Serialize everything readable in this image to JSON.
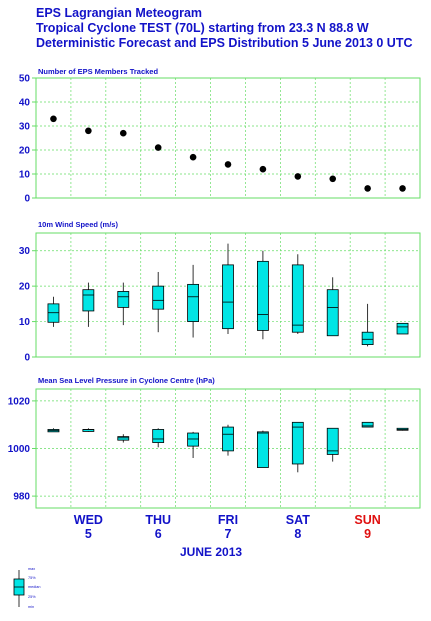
{
  "header": {
    "line1": "EPS Lagrangian Meteogram",
    "line2": "Tropical Cyclone TEST (70L) starting from 23.3 N  88.8 W",
    "line3": "Deterministic Forecast and EPS Distribution 5 June 2013 0 UTC"
  },
  "colors": {
    "title": "#1212c8",
    "grid": "#66dd66",
    "box_fill": "#00e5e5",
    "marker": "#000000",
    "weekend_day": "#e01010"
  },
  "days": [
    {
      "name": "WED",
      "num": "5",
      "weekend": false
    },
    {
      "name": "THU",
      "num": "6",
      "weekend": false
    },
    {
      "name": "FRI",
      "num": "7",
      "weekend": false
    },
    {
      "name": "SAT",
      "num": "8",
      "weekend": false
    },
    {
      "name": "SUN",
      "num": "9",
      "weekend": true
    }
  ],
  "month_label": "JUNE    2013",
  "legend": {
    "labels": [
      "max",
      "75%",
      "median",
      "25%",
      "min"
    ]
  },
  "chart_data": [
    {
      "type": "scatter",
      "title": "Number of EPS Members Tracked",
      "ylim": [
        0,
        50
      ],
      "yticks": [
        0,
        10,
        20,
        30,
        40,
        50
      ],
      "grid": true,
      "x": [
        0,
        1,
        2,
        3,
        4,
        5,
        6,
        7,
        8,
        9,
        10
      ],
      "values": [
        33,
        28,
        27,
        21,
        17,
        14,
        12,
        9,
        8,
        4,
        4
      ]
    },
    {
      "type": "box",
      "title": "10m Wind Speed (m/s)",
      "ylim": [
        0,
        35
      ],
      "yticks": [
        0,
        10,
        20,
        30
      ],
      "grid": true,
      "boxes": [
        {
          "min": 8.5,
          "q1": 9.8,
          "median": 12.5,
          "q3": 15,
          "max": 17
        },
        {
          "min": 8.5,
          "q1": 13,
          "median": 17.5,
          "q3": 19,
          "max": 21
        },
        {
          "min": 9,
          "q1": 14,
          "median": 17,
          "q3": 18.5,
          "max": 21
        },
        {
          "min": 7,
          "q1": 13.5,
          "median": 16,
          "q3": 20,
          "max": 24
        },
        {
          "min": 5.5,
          "q1": 10,
          "median": 17,
          "q3": 20.5,
          "max": 26
        },
        {
          "min": 6.5,
          "q1": 8,
          "median": 15.5,
          "q3": 26,
          "max": 32
        },
        {
          "min": 5,
          "q1": 7.5,
          "median": 12,
          "q3": 27,
          "max": 30
        },
        {
          "min": 6.5,
          "q1": 7,
          "median": 9,
          "q3": 26,
          "max": 29
        },
        {
          "min": 6,
          "q1": 6,
          "median": 14,
          "q3": 19,
          "max": 22.5
        },
        {
          "min": 3,
          "q1": 3.5,
          "median": 5,
          "q3": 7,
          "max": 15
        },
        {
          "min": 6.5,
          "q1": 6.5,
          "median": 8.5,
          "q3": 9.5,
          "max": 9.5
        }
      ]
    },
    {
      "type": "box",
      "title": "Mean Sea Level Pressure in Cyclone Centre (hPa)",
      "ylim": [
        975,
        1025
      ],
      "yticks": [
        980,
        1000,
        1020
      ],
      "grid": true,
      "boxes": [
        {
          "min": 1007,
          "q1": 1007,
          "median": 1007.5,
          "q3": 1008,
          "max": 1008.5
        },
        {
          "min": 1007,
          "q1": 1007.5,
          "median": 1008,
          "q3": 1008,
          "max": 1008.5
        },
        {
          "min": 1002.5,
          "q1": 1003.5,
          "median": 1004.5,
          "q3": 1005,
          "max": 1006
        },
        {
          "min": 1000.5,
          "q1": 1002.5,
          "median": 1004,
          "q3": 1008,
          "max": 1008.5
        },
        {
          "min": 996,
          "q1": 1001,
          "median": 1004,
          "q3": 1006.5,
          "max": 1007
        },
        {
          "min": 997,
          "q1": 999,
          "median": 1006,
          "q3": 1009,
          "max": 1010
        },
        {
          "min": 992,
          "q1": 992,
          "median": 1006.5,
          "q3": 1007,
          "max": 1007.5
        },
        {
          "min": 990,
          "q1": 993.5,
          "median": 1009,
          "q3": 1011,
          "max": 1011
        },
        {
          "min": 994.5,
          "q1": 997.5,
          "median": 999,
          "q3": 1008.5,
          "max": 1008.5
        },
        {
          "min": 1009,
          "q1": 1009,
          "median": 1009.5,
          "q3": 1011,
          "max": 1011
        },
        {
          "min": 1007.5,
          "q1": 1008,
          "median": 1008,
          "q3": 1008.5,
          "max": 1008.5
        }
      ]
    }
  ]
}
